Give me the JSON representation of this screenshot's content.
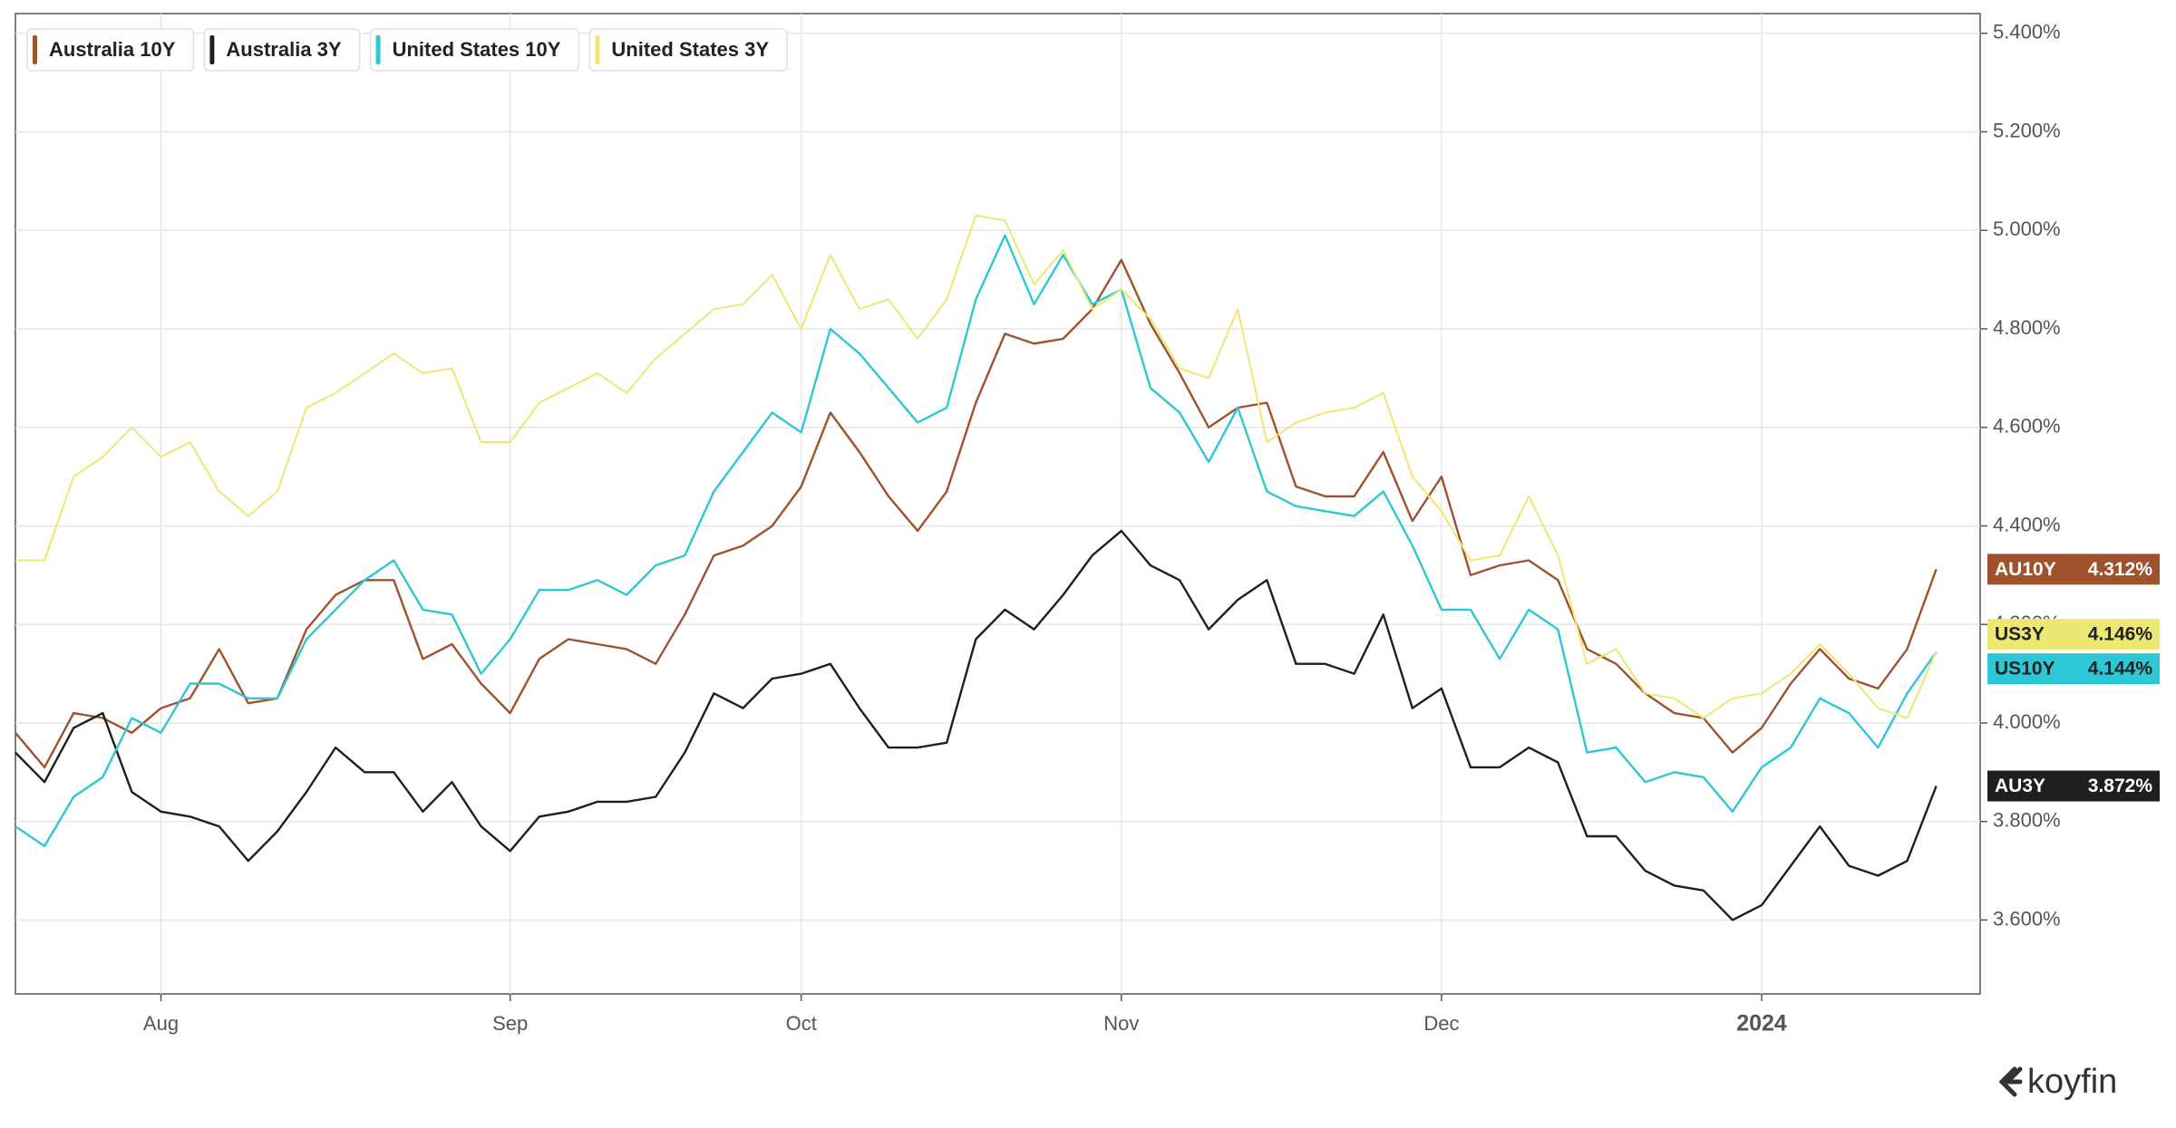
{
  "chart_data": {
    "type": "line",
    "categories": [
      null,
      null,
      null,
      null,
      null,
      "Aug",
      null,
      null,
      null,
      null,
      null,
      null,
      null,
      null,
      null,
      null,
      null,
      "Sep",
      null,
      null,
      null,
      null,
      null,
      null,
      null,
      null,
      null,
      "Oct",
      null,
      null,
      null,
      null,
      null,
      null,
      null,
      null,
      null,
      null,
      "Nov",
      null,
      null,
      null,
      null,
      null,
      null,
      null,
      null,
      null,
      null,
      "Dec",
      null,
      null,
      null,
      null,
      null,
      null,
      null,
      null,
      null,
      null,
      "2024",
      null,
      null,
      null,
      null,
      null,
      null
    ],
    "series": [
      {
        "name": "Australia 10Y",
        "color": "#a0522d",
        "end_label": {
          "ticker": "AU10Y",
          "value": 4.312,
          "label": "4.312%"
        },
        "values": [
          3.98,
          3.91,
          4.02,
          4.01,
          3.98,
          4.03,
          4.05,
          4.15,
          4.04,
          4.05,
          4.19,
          4.26,
          4.29,
          4.29,
          4.13,
          4.16,
          4.08,
          4.02,
          4.13,
          4.17,
          4.16,
          4.15,
          4.12,
          4.22,
          4.34,
          4.36,
          4.4,
          4.48,
          4.63,
          4.55,
          4.46,
          4.39,
          4.47,
          4.65,
          4.79,
          4.77,
          4.78,
          4.84,
          4.94,
          4.81,
          4.71,
          4.6,
          4.64,
          4.65,
          4.48,
          4.46,
          4.46,
          4.55,
          4.41,
          4.5,
          4.3,
          4.32,
          4.33,
          4.29,
          4.15,
          4.12,
          4.06,
          4.02,
          4.01,
          3.94,
          3.99,
          4.08,
          4.15,
          4.09,
          4.07,
          4.15,
          4.312
        ]
      },
      {
        "name": "Australia 3Y",
        "color": "#1f1f1f",
        "end_label": {
          "ticker": "AU3Y",
          "value": 3.872,
          "label": "3.872%"
        },
        "values": [
          3.94,
          3.88,
          3.99,
          4.02,
          3.86,
          3.82,
          3.81,
          3.79,
          3.72,
          3.78,
          3.86,
          3.95,
          3.9,
          3.9,
          3.82,
          3.88,
          3.79,
          3.74,
          3.81,
          3.82,
          3.84,
          3.84,
          3.85,
          3.94,
          4.06,
          4.03,
          4.09,
          4.1,
          4.12,
          4.03,
          3.95,
          3.95,
          3.96,
          4.17,
          4.23,
          4.19,
          4.26,
          4.34,
          4.39,
          4.32,
          4.29,
          4.19,
          4.25,
          4.29,
          4.12,
          4.12,
          4.1,
          4.22,
          4.03,
          4.07,
          3.91,
          3.91,
          3.95,
          3.92,
          3.77,
          3.77,
          3.7,
          3.67,
          3.66,
          3.6,
          3.63,
          3.71,
          3.79,
          3.71,
          3.69,
          3.72,
          3.872
        ]
      },
      {
        "name": "United States 10Y",
        "color": "#2ec7d6",
        "end_label": {
          "ticker": "US10Y",
          "value": 4.144,
          "label": "4.144%"
        },
        "values": [
          3.79,
          3.75,
          3.85,
          3.89,
          4.01,
          3.98,
          4.08,
          4.08,
          4.05,
          4.05,
          4.17,
          4.23,
          4.29,
          4.33,
          4.23,
          4.22,
          4.1,
          4.17,
          4.27,
          4.27,
          4.29,
          4.26,
          4.32,
          4.34,
          4.47,
          4.55,
          4.63,
          4.59,
          4.8,
          4.75,
          4.68,
          4.61,
          4.64,
          4.86,
          4.99,
          4.85,
          4.95,
          4.85,
          4.88,
          4.68,
          4.63,
          4.53,
          4.64,
          4.47,
          4.44,
          4.43,
          4.42,
          4.47,
          4.36,
          4.23,
          4.23,
          4.13,
          4.23,
          4.19,
          3.94,
          3.95,
          3.88,
          3.9,
          3.89,
          3.82,
          3.91,
          3.95,
          4.05,
          4.02,
          3.95,
          4.06,
          4.144
        ]
      },
      {
        "name": "United States 3Y",
        "color": "#ece873",
        "end_label": {
          "ticker": "US3Y",
          "value": 4.146,
          "label": "4.146%"
        },
        "values": [
          4.33,
          4.33,
          4.5,
          4.54,
          4.6,
          4.54,
          4.57,
          4.47,
          4.42,
          4.47,
          4.64,
          4.67,
          4.71,
          4.75,
          4.71,
          4.72,
          4.57,
          4.57,
          4.65,
          4.68,
          4.71,
          4.67,
          4.74,
          4.79,
          4.84,
          4.85,
          4.91,
          4.8,
          4.95,
          4.84,
          4.86,
          4.78,
          4.86,
          5.03,
          5.02,
          4.89,
          4.96,
          4.84,
          4.88,
          4.82,
          4.72,
          4.7,
          4.84,
          4.57,
          4.61,
          4.63,
          4.64,
          4.67,
          4.5,
          4.43,
          4.33,
          4.34,
          4.46,
          4.34,
          4.12,
          4.15,
          4.06,
          4.05,
          4.01,
          4.05,
          4.06,
          4.1,
          4.16,
          4.1,
          4.03,
          4.01,
          4.146
        ]
      }
    ],
    "ylim": [
      3.45,
      5.44
    ],
    "yticks": [
      {
        "value": 3.6,
        "label": "3.600%"
      },
      {
        "value": 3.8,
        "label": "3.800%"
      },
      {
        "value": 4.0,
        "label": "4.000%"
      },
      {
        "value": 4.2,
        "label": "4.200%"
      },
      {
        "value": 4.4,
        "label": "4.400%"
      },
      {
        "value": 4.6,
        "label": "4.600%"
      },
      {
        "value": 4.8,
        "label": "4.800%"
      },
      {
        "value": 5.0,
        "label": "5.000%"
      },
      {
        "value": 5.2,
        "label": "5.200%"
      },
      {
        "value": 5.4,
        "label": "5.400%"
      }
    ],
    "grid": true,
    "legend": "top-left",
    "brand": "koyfin"
  }
}
